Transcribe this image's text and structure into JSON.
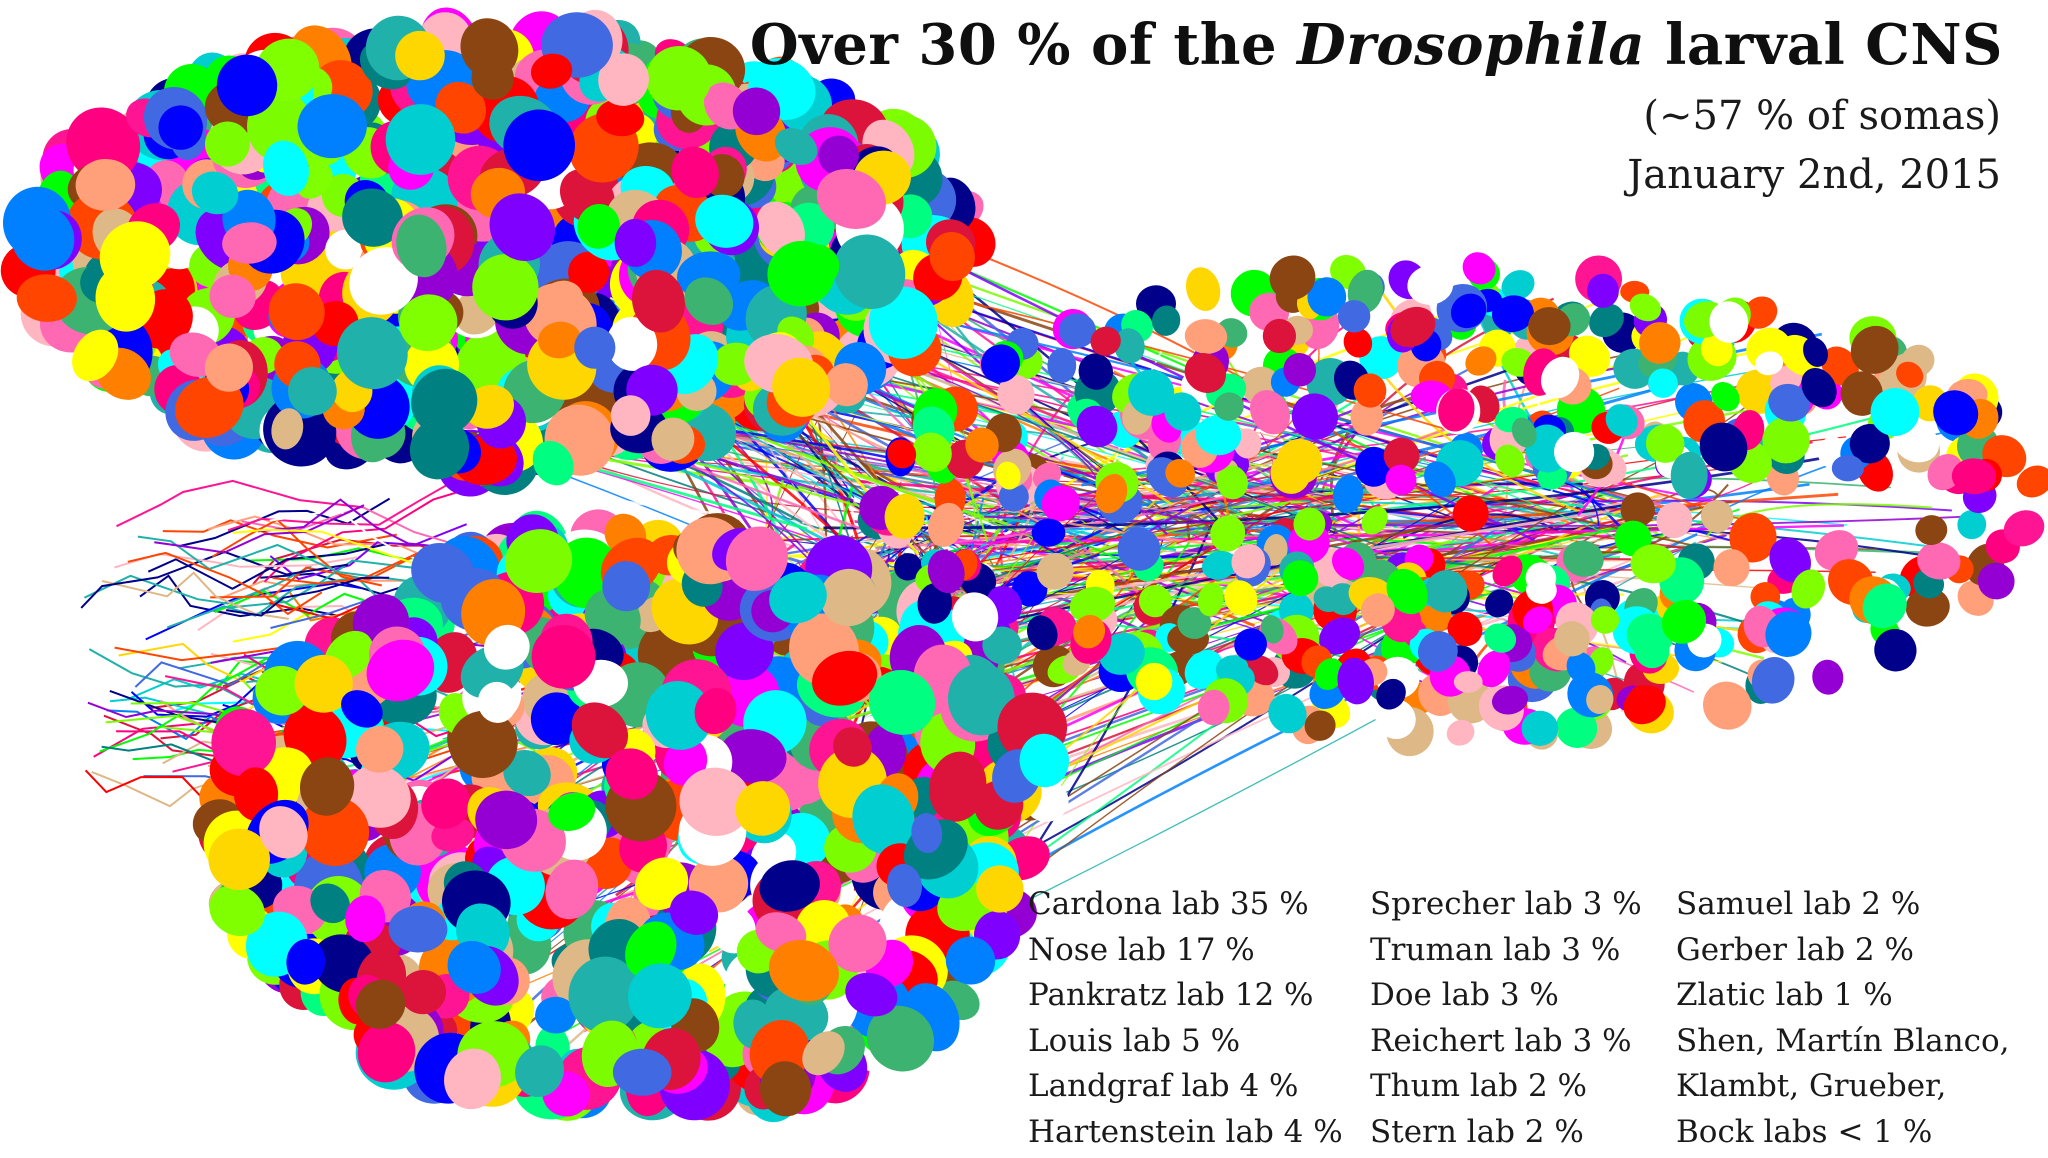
{
  "title": {
    "prefix": "Over 30 % of the ",
    "italic": "Drosophila",
    "suffix": " larval CNS"
  },
  "subtitle": "(~57 % of somas)",
  "date": "January 2nd, 2015",
  "credits": {
    "column1": [
      "Cardona lab 35 %",
      "Nose lab 17 %",
      "Pankratz lab 12 %",
      "Louis lab 5 %",
      "Landgraf lab 4 %",
      "Hartenstein lab 4 %"
    ],
    "column2": [
      "Sprecher lab 3 %",
      "Truman lab 3 %",
      "Doe lab 3 %",
      "Reichert lab 3 %",
      "Thum lab 2 %",
      "Stern lab 2 %"
    ],
    "column3": [
      "Samuel lab 2 %",
      "Gerber lab 2 %",
      "Zlatic lab 1 %",
      "Shen, Martín Blanco,",
      "Klambt, Grueber,",
      "Bock labs < 1 %"
    ]
  },
  "palette": [
    "#ff00ff",
    "#00ffff",
    "#ffff00",
    "#00ff00",
    "#ff0000",
    "#0000ff",
    "#ff8000",
    "#8000ff",
    "#ff0080",
    "#00ff80",
    "#80ff00",
    "#0080ff",
    "#8b4513",
    "#ff69b4",
    "#ffb6c1",
    "#ffa07a",
    "#00008b",
    "#008080",
    "#ffd700",
    "#7cfc00",
    "#9400d3",
    "#ff1493",
    "#00ced1",
    "#dc143c",
    "#deb887",
    "#4169e1",
    "#3cb371",
    "#ffffff",
    "#20b2aa",
    "#ff4500"
  ]
}
